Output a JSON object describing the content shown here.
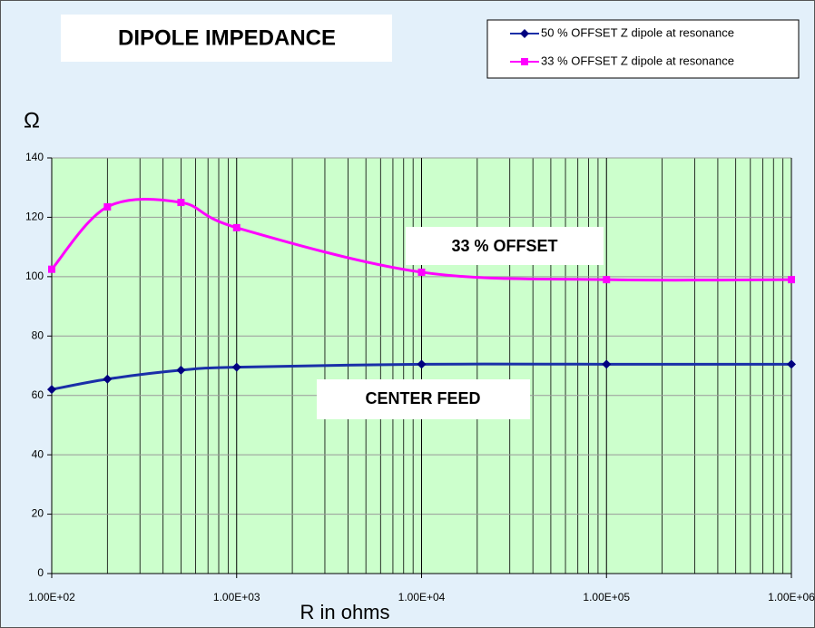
{
  "chart_data": {
    "type": "line",
    "title": "DIPOLE  IMPEDANCE",
    "ylabel": "Ω",
    "xlabel": "R in ohms",
    "annotations": [
      "33 % OFFSET",
      "CENTER  FEED"
    ],
    "x": [
      100,
      200,
      500,
      1000,
      10000,
      100000,
      1000000
    ],
    "series": [
      {
        "name": "50 % OFFSET Z dipole at resonance",
        "color": "#1a2fa8",
        "marker": "diamond",
        "values": [
          62,
          65.5,
          68.5,
          69.5,
          70.5,
          70.5,
          70.5
        ]
      },
      {
        "name": "33 % OFFSET Z dipole at resonance",
        "color": "#ff00ff",
        "marker": "square",
        "values": [
          102.5,
          123.5,
          125,
          116.5,
          101.5,
          99,
          99
        ]
      }
    ],
    "xscale": "log",
    "xlim": [
      100,
      1000000
    ],
    "xticks": [
      {
        "value": 100,
        "label": "1.00E+02"
      },
      {
        "value": 1000,
        "label": "1.00E+03"
      },
      {
        "value": 10000,
        "label": "1.00E+04"
      },
      {
        "value": 100000,
        "label": "1.00E+05"
      },
      {
        "value": 1000000,
        "label": "1.00E+06"
      }
    ],
    "ylim": [
      0,
      140
    ],
    "yticks": [
      0,
      20,
      40,
      60,
      80,
      100,
      120,
      140
    ],
    "grid": true,
    "legend": "top-right"
  }
}
